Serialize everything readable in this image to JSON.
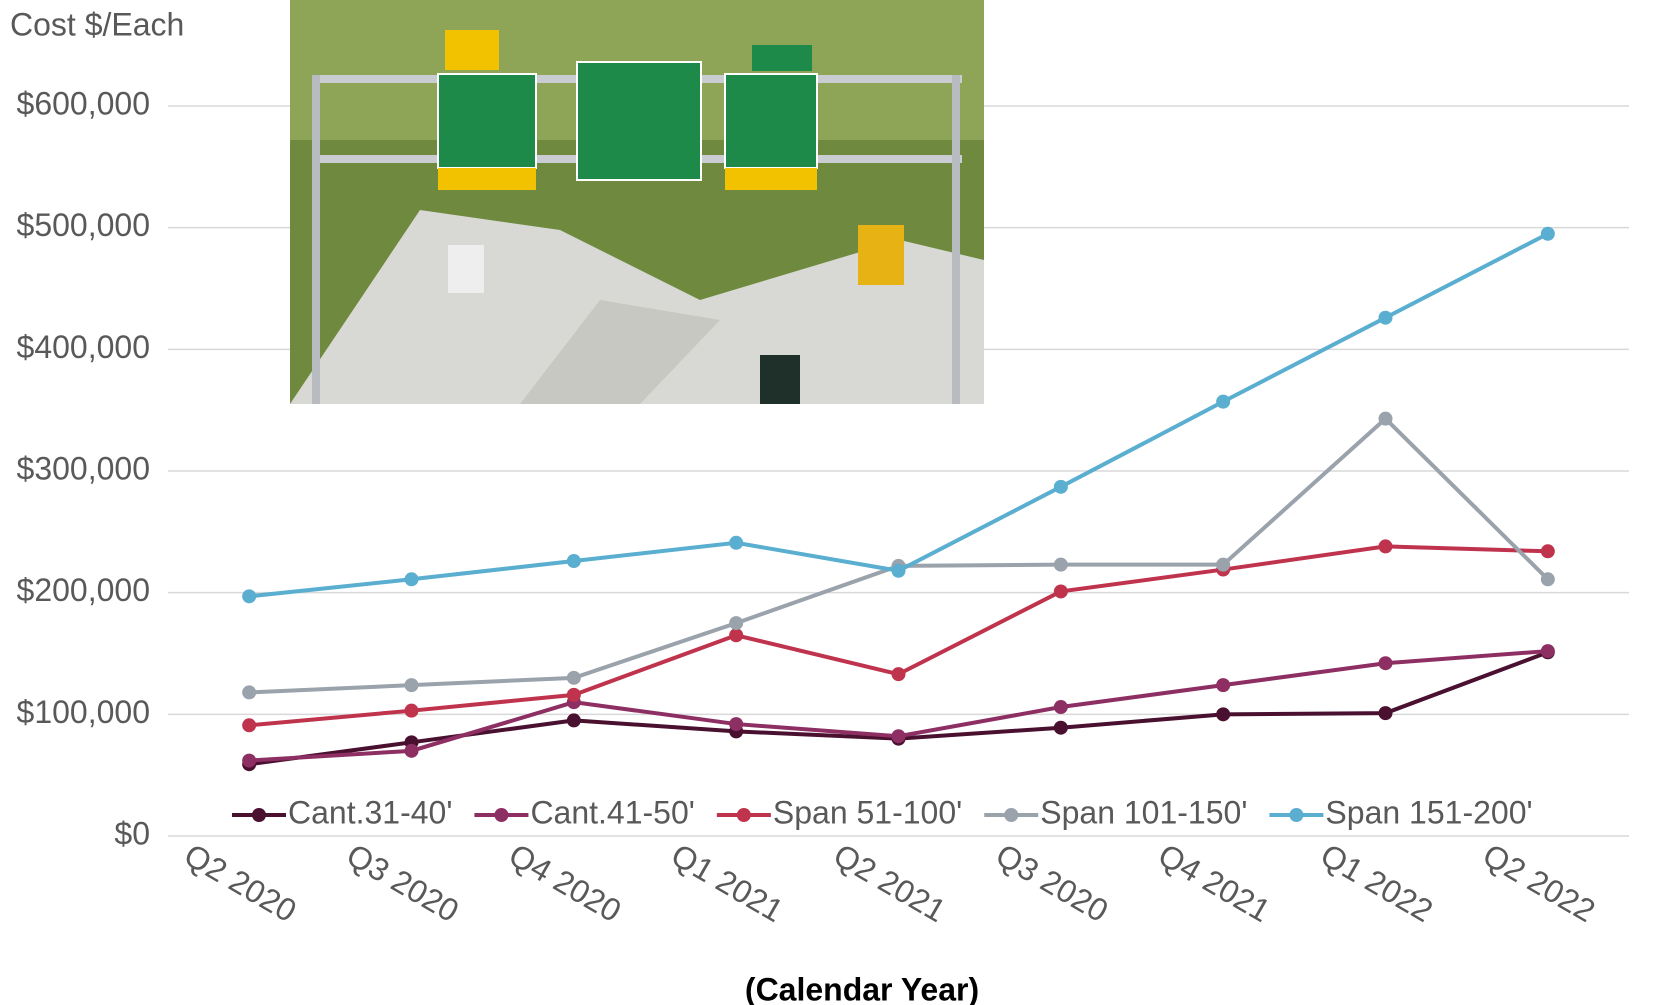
{
  "chart_data": {
    "type": "line",
    "y_axis_title": "Cost $/Each",
    "x_axis_title": "(Calendar Year)",
    "categories": [
      "Q2 2020",
      "Q3 2020",
      "Q4 2020",
      "Q1 2021",
      "Q2 2021",
      "Q3 2020",
      "Q4 2021",
      "Q1 2022",
      "Q2 2022"
    ],
    "series": [
      {
        "name": "Cant.31-40'",
        "color": "#4a1030",
        "values": [
          59000,
          77000,
          95000,
          86000,
          80000,
          89000,
          100000,
          101000,
          151000
        ]
      },
      {
        "name": "Cant.41-50'",
        "color": "#8e2f64",
        "values": [
          62000,
          70000,
          110000,
          92000,
          82000,
          106000,
          124000,
          142000,
          152000
        ]
      },
      {
        "name": "Span 51-100'",
        "color": "#c0334d",
        "values": [
          91000,
          103000,
          116000,
          165000,
          133000,
          201000,
          219000,
          238000,
          234000
        ]
      },
      {
        "name": "Span 101-150'",
        "color": "#9aa2ab",
        "values": [
          118000,
          124000,
          130000,
          175000,
          222000,
          223000,
          223000,
          343000,
          211000
        ]
      },
      {
        "name": "Span 151-200'",
        "color": "#5aaed0",
        "values": [
          197000,
          211000,
          226000,
          241000,
          218000,
          287000,
          357000,
          426000,
          495000
        ]
      }
    ],
    "ylim": [
      0,
      600000
    ],
    "yticks": [
      {
        "value": 0,
        "label": "$0"
      },
      {
        "value": 100000,
        "label": "$100,000"
      },
      {
        "value": 200000,
        "label": "$200,000"
      },
      {
        "value": 300000,
        "label": "$300,000"
      },
      {
        "value": 400000,
        "label": "$400,000"
      },
      {
        "value": 500000,
        "label": "$500,000"
      },
      {
        "value": 600000,
        "label": "$600,000"
      }
    ],
    "grid": true,
    "legend": "bottom"
  }
}
